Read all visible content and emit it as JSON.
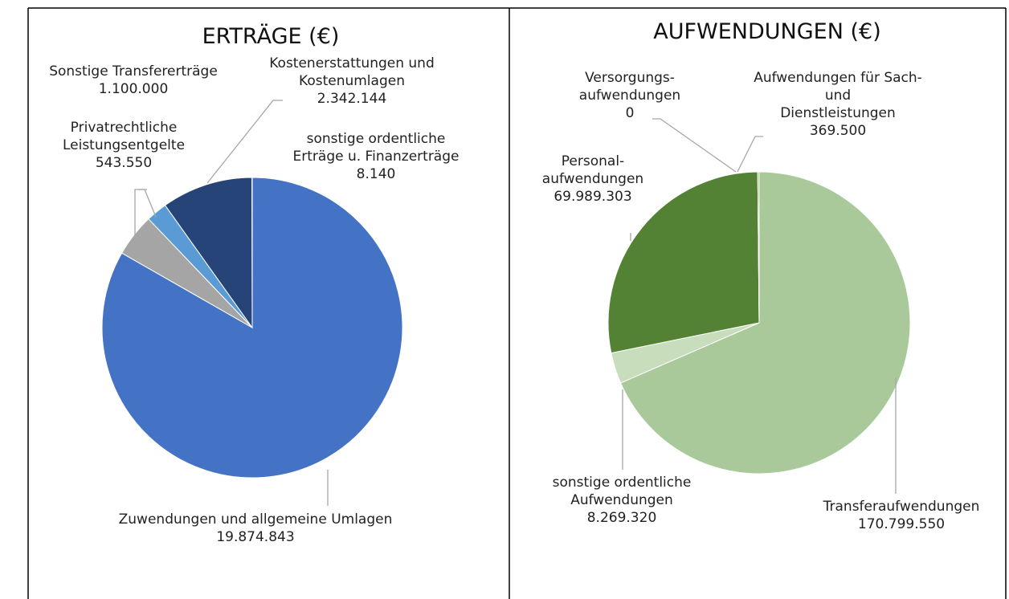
{
  "chart_data": [
    {
      "type": "pie",
      "title": "ERTRÄGE (€)",
      "categories": [
        "Zuwendungen und allgemeine Umlagen",
        "Sonstige Transfererträge",
        "Privatrechtliche\nLeistungsentgelte",
        "Kostenerstattungen und\nKostenumlagen",
        "sonstige ordentliche\nErträge u. Finanzerträge"
      ],
      "values": [
        19874843,
        1100000,
        543550,
        2342144,
        8140
      ],
      "value_labels": [
        "19.874.843",
        "1.100.000",
        "543.550",
        "2.342.144",
        "8.140"
      ],
      "colors": [
        "#4472c4",
        "#a5a5a5",
        "#5b9bd5",
        "#264478",
        "#636363"
      ]
    },
    {
      "type": "pie",
      "title": "AUFWENDUNGEN (€)",
      "categories": [
        "Transferaufwendungen",
        "sonstige ordentliche\nAufwendungen",
        "Personal-\naufwendungen",
        "Versorgungs-\naufwendungen",
        "Aufwendungen für Sach- und\nDienstleistungen"
      ],
      "values": [
        170799550,
        8269320,
        69989303,
        0,
        369500
      ],
      "value_labels": [
        "170.799.550",
        "8.269.320",
        "69.989.303",
        "0",
        "369.500"
      ],
      "colors": [
        "#a9c99a",
        "#c7ddbb",
        "#548235",
        "#385723",
        "#70ad47"
      ]
    }
  ]
}
